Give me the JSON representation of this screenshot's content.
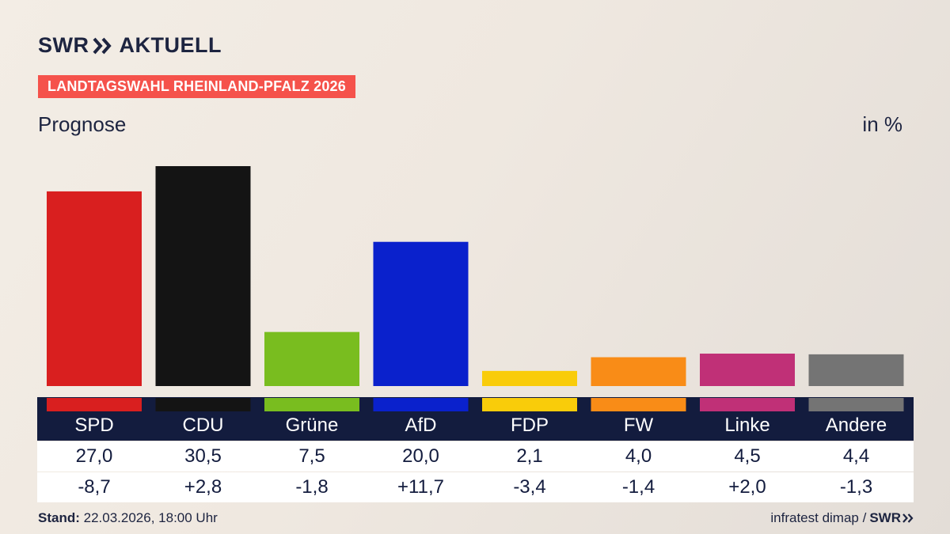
{
  "header": {
    "brand": "SWR",
    "brand_suffix": "AKTUELL",
    "topic": "LANDTAGSWAHL RHEINLAND-PFALZ 2026",
    "subtitle": "Prognose",
    "unit": "in %"
  },
  "chart_data": {
    "type": "bar",
    "categories": [
      "SPD",
      "CDU",
      "Grüne",
      "AfD",
      "FDP",
      "FW",
      "Linke",
      "Andere"
    ],
    "values": [
      27.0,
      30.5,
      7.5,
      20.0,
      2.1,
      4.0,
      4.5,
      4.4
    ],
    "value_labels": [
      "27,0",
      "30,5",
      "7,5",
      "20,0",
      "2,1",
      "4,0",
      "4,5",
      "4,4"
    ],
    "change_labels": [
      "-8,7",
      "+2,8",
      "-1,8",
      "+11,7",
      "-3,4",
      "-1,4",
      "+2,0",
      "-1,3"
    ],
    "changes": [
      -8.7,
      2.8,
      -1.8,
      11.7,
      -3.4,
      -1.4,
      2.0,
      -1.3
    ],
    "colors": [
      "#d91f1f",
      "#141414",
      "#79bd1f",
      "#0a21cc",
      "#f9cc0a",
      "#f98c17",
      "#c03077",
      "#747474"
    ],
    "ylim": [
      0,
      30.5
    ],
    "title": "",
    "xlabel": "",
    "ylabel": ""
  },
  "footer": {
    "stand_label": "Stand:",
    "stand_value": "22.03.2026, 18:00 Uhr",
    "source": "infratest dimap /",
    "source_brand": "SWR"
  }
}
